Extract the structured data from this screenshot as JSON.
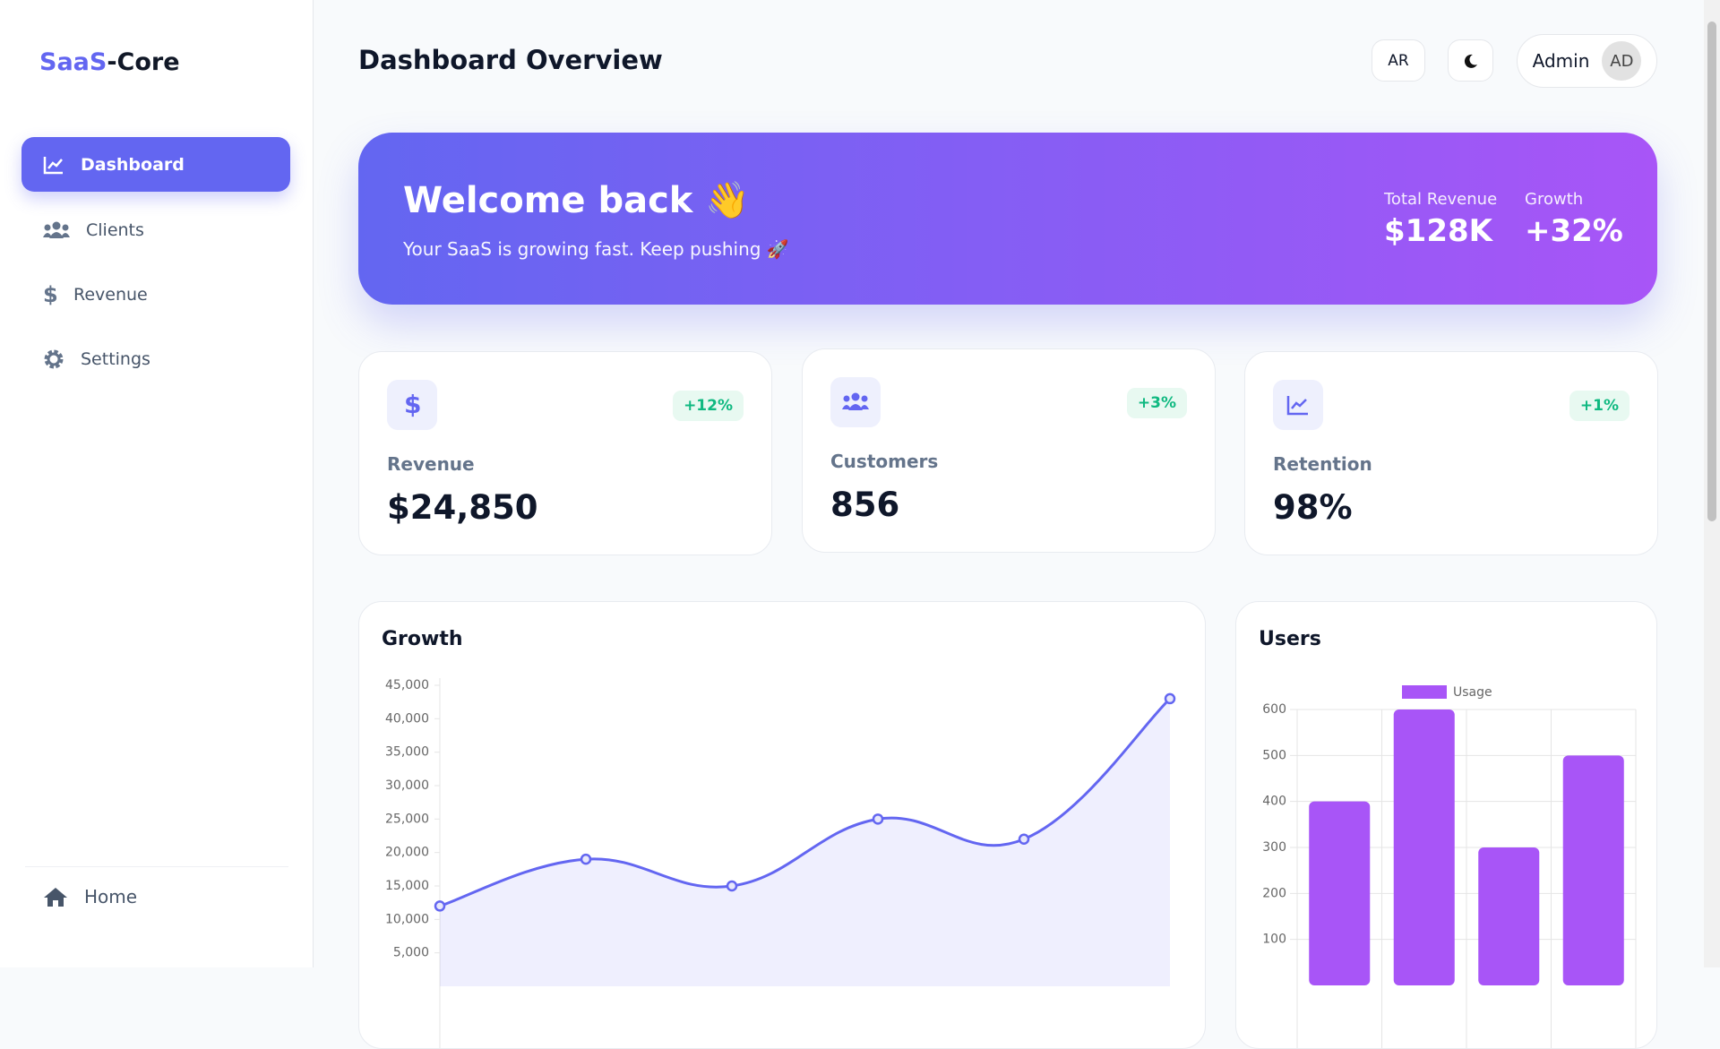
{
  "sidebar": {
    "logo": {
      "brand": "SaaS",
      "suffix": "-Core"
    },
    "nav": [
      "Dashboard",
      "Clients",
      "Revenue",
      "Settings"
    ],
    "footer": "Home"
  },
  "header": {
    "title": "Dashboard Overview",
    "language": "AR",
    "user": "Admin",
    "avatar": "AD"
  },
  "hero": {
    "title": "Welcome back 👋",
    "subtitle": "Your SaaS is growing fast. Keep pushing 🚀",
    "stats": [
      {
        "label": "Total Revenue",
        "value": "$128K"
      },
      {
        "label": "Growth",
        "value": "+32%"
      }
    ]
  },
  "cards": [
    {
      "label": "Revenue",
      "value": "$24,850",
      "change": "+12%"
    },
    {
      "label": "Customers",
      "value": "856",
      "change": "+3%"
    },
    {
      "label": "Retention",
      "value": "98%",
      "change": "+1%"
    }
  ],
  "chart_data": [
    {
      "type": "line",
      "title": "Growth",
      "color": "#6366f1",
      "values": [
        12000,
        19000,
        15000,
        25000,
        22000,
        43000
      ],
      "ylim": [
        0,
        45000
      ],
      "yticks": [
        {
          "value": 5000,
          "label": "5,000"
        },
        {
          "value": 10000,
          "label": "10,000"
        },
        {
          "value": 15000,
          "label": "15,000"
        },
        {
          "value": 20000,
          "label": "20,000"
        },
        {
          "value": 25000,
          "label": "25,000"
        },
        {
          "value": 30000,
          "label": "30,000"
        },
        {
          "value": 35000,
          "label": "35,000"
        },
        {
          "value": 40000,
          "label": "40,000"
        },
        {
          "value": 45000,
          "label": "45,000"
        }
      ]
    },
    {
      "type": "bar",
      "title": "Users",
      "series": [
        {
          "name": "Usage",
          "color": "#a855f7",
          "values": [
            400,
            600,
            300,
            500
          ]
        }
      ],
      "ylim": [
        0,
        600
      ],
      "yticks": [
        100,
        200,
        300,
        400,
        500,
        600
      ],
      "grid": true
    }
  ]
}
